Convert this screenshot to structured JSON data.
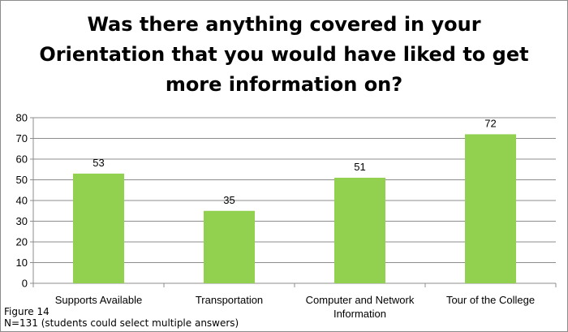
{
  "chart_data": {
    "type": "bar",
    "title_lines": [
      "Was there anything covered in your",
      "Orientation that you would have liked to get",
      "more information on?"
    ],
    "categories": [
      [
        "Supports Available"
      ],
      [
        "Transportation"
      ],
      [
        "Computer and Network",
        "Information"
      ],
      [
        "Tour of the College"
      ]
    ],
    "values": [
      53,
      35,
      51,
      72
    ],
    "ylim": [
      0,
      80
    ],
    "yticks": [
      0,
      10,
      20,
      30,
      40,
      50,
      60,
      70,
      80
    ],
    "grid": true,
    "bar_color": "#92d050",
    "grid_color": "#8c8c8c"
  },
  "notes": {
    "figure": "Figure 14",
    "sample": "N=131  (students could select multiple answers)"
  }
}
